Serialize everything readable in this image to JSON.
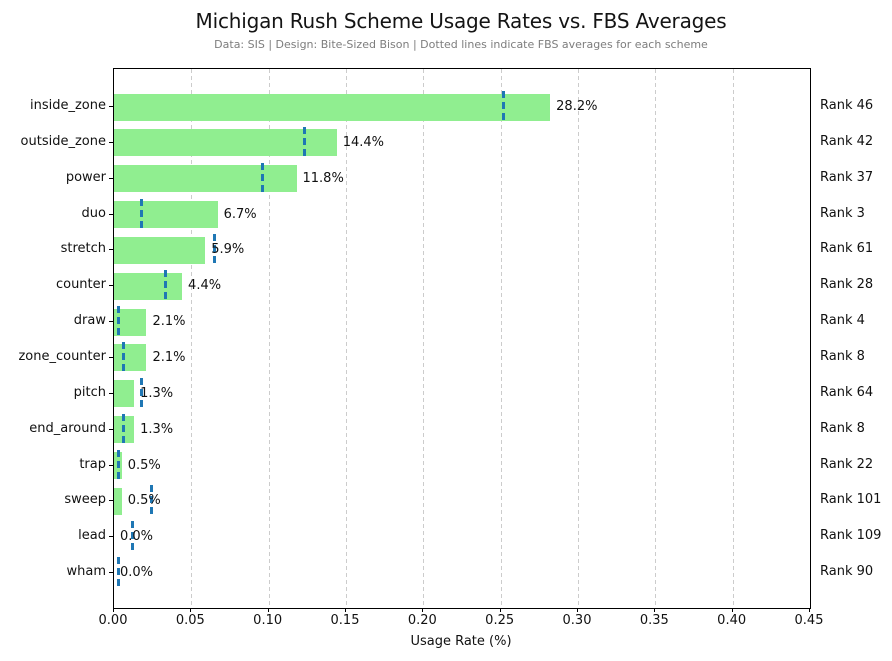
{
  "header": {
    "title": "Michigan Rush Scheme Usage Rates vs. FBS Averages",
    "subtitle": "Data: SIS | Design: Bite-Sized Bison | Dotted lines indicate FBS averages for each scheme"
  },
  "chart_data": {
    "type": "bar",
    "orientation": "horizontal",
    "title": "Michigan Rush Scheme Usage Rates vs. FBS Averages",
    "subtitle": "Data: SIS | Design: Bite-Sized Bison | Dotted lines indicate FBS averages for each scheme",
    "xlabel": "Usage Rate (%)",
    "xlim": [
      0.0,
      0.45
    ],
    "x_ticks": [
      {
        "label": "0.00",
        "value": 0.0
      },
      {
        "label": "0.05",
        "value": 0.05
      },
      {
        "label": "0.10",
        "value": 0.1
      },
      {
        "label": "0.15",
        "value": 0.15
      },
      {
        "label": "0.20",
        "value": 0.2
      },
      {
        "label": "0.25",
        "value": 0.25
      },
      {
        "label": "0.30",
        "value": 0.3
      },
      {
        "label": "0.35",
        "value": 0.35
      },
      {
        "label": "0.40",
        "value": 0.4
      },
      {
        "label": "0.45",
        "value": 0.45
      }
    ],
    "grid": true,
    "legend": "none",
    "colors": {
      "bar_fill": "#90EE90",
      "fbs_avg_line": "#1f77b4",
      "gridline": "#cccccc",
      "spine": "#000000",
      "subtitle_text": "#7d7d7d"
    },
    "series_note": "values = Michigan usage rate (fraction); fbs_avg = FBS average shown as blue dashed vertical line",
    "rows": [
      {
        "category": "inside_zone",
        "value": 0.282,
        "value_label": "28.2%",
        "fbs_avg": 0.252,
        "rank": "Rank 46"
      },
      {
        "category": "outside_zone",
        "value": 0.144,
        "value_label": "14.4%",
        "fbs_avg": 0.123,
        "rank": "Rank 42"
      },
      {
        "category": "power",
        "value": 0.118,
        "value_label": "11.8%",
        "fbs_avg": 0.096,
        "rank": "Rank 37"
      },
      {
        "category": "duo",
        "value": 0.067,
        "value_label": "6.7%",
        "fbs_avg": 0.018,
        "rank": "Rank 3"
      },
      {
        "category": "stretch",
        "value": 0.059,
        "value_label": "5.9%",
        "fbs_avg": 0.065,
        "rank": "Rank 61"
      },
      {
        "category": "counter",
        "value": 0.044,
        "value_label": "4.4%",
        "fbs_avg": 0.033,
        "rank": "Rank 28"
      },
      {
        "category": "draw",
        "value": 0.021,
        "value_label": "2.1%",
        "fbs_avg": 0.003,
        "rank": "Rank 4"
      },
      {
        "category": "zone_counter",
        "value": 0.021,
        "value_label": "2.1%",
        "fbs_avg": 0.006,
        "rank": "Rank 8"
      },
      {
        "category": "pitch",
        "value": 0.013,
        "value_label": "1.3%",
        "fbs_avg": 0.018,
        "rank": "Rank 64"
      },
      {
        "category": "end_around",
        "value": 0.013,
        "value_label": "1.3%",
        "fbs_avg": 0.006,
        "rank": "Rank 8"
      },
      {
        "category": "trap",
        "value": 0.005,
        "value_label": "0.5%",
        "fbs_avg": 0.003,
        "rank": "Rank 22"
      },
      {
        "category": "sweep",
        "value": 0.005,
        "value_label": "0.5%",
        "fbs_avg": 0.024,
        "rank": "Rank 101"
      },
      {
        "category": "lead",
        "value": 0.0,
        "value_label": "0.0%",
        "fbs_avg": 0.012,
        "rank": "Rank 109"
      },
      {
        "category": "wham",
        "value": 0.0,
        "value_label": "0.0%",
        "fbs_avg": 0.003,
        "rank": "Rank 90"
      }
    ]
  }
}
